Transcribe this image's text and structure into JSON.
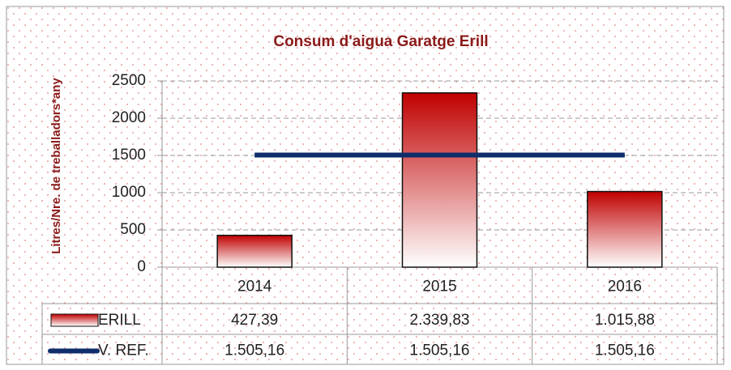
{
  "chart_data": {
    "type": "bar",
    "title": "Consum d'aigua Garatge Erill",
    "y_label": "Litres/Nre. de treballadors*any",
    "categories": [
      "2014",
      "2015",
      "2016"
    ],
    "series": [
      {
        "name": "ERILL",
        "type": "bar",
        "color": "#c00000",
        "values": [
          427.39,
          2339.83,
          1015.88
        ],
        "value_labels": [
          "427,39",
          "2.339,83",
          "1.015,88"
        ]
      },
      {
        "name": "V. REF.",
        "type": "line",
        "color": "#0e2d6b",
        "values": [
          1505.16,
          1505.16,
          1505.16
        ],
        "value_labels": [
          "1.505,16",
          "1.505,16",
          "1.505,16"
        ]
      }
    ],
    "ylim": [
      0,
      2500
    ],
    "yticks": [
      0,
      500,
      1000,
      1500,
      2000,
      2500
    ],
    "grid": true
  }
}
